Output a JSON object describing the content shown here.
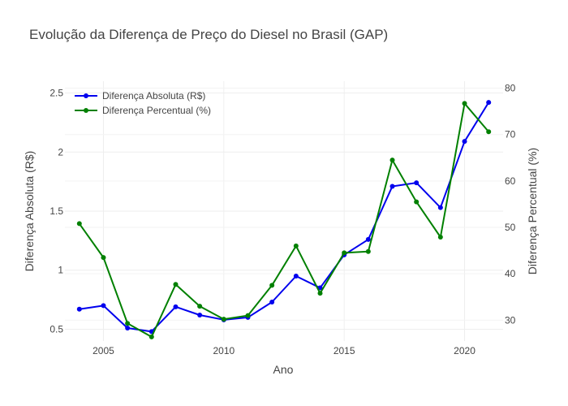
{
  "chart_data": {
    "type": "line",
    "title": "Evolução da Diferença de Preço do Diesel no Brasil (GAP)",
    "xlabel": "Ano",
    "ylabel": "Diferença Absoluta (R$)",
    "y2label": "Diferença Percentual (%)",
    "x": [
      2004,
      2005,
      2006,
      2007,
      2008,
      2009,
      2010,
      2011,
      2012,
      2013,
      2014,
      2015,
      2016,
      2017,
      2018,
      2019,
      2020,
      2021
    ],
    "xlim": [
      2003.4,
      2021.6
    ],
    "ylim": [
      0.4,
      2.6
    ],
    "y2lim": [
      25.5,
      81.5
    ],
    "x_ticks": [
      2005,
      2010,
      2015,
      2020
    ],
    "y_ticks": [
      0.5,
      1,
      1.5,
      2,
      2.5
    ],
    "y2_ticks": [
      30,
      40,
      50,
      60,
      70,
      80
    ],
    "grid": true,
    "legend_position": "top-left",
    "series": [
      {
        "name": "Diferença Absoluta (R$)",
        "axis": "y",
        "color": "#0000ee",
        "values": [
          0.67,
          0.7,
          0.51,
          0.48,
          0.69,
          0.62,
          0.58,
          0.6,
          0.73,
          0.95,
          0.85,
          1.13,
          1.26,
          1.71,
          1.74,
          1.53,
          2.09,
          2.42
        ]
      },
      {
        "name": "Diferença Percentual (%)",
        "axis": "y2",
        "color": "#008000",
        "values": [
          50.8,
          43.5,
          29.3,
          26.4,
          37.7,
          33.0,
          30.2,
          31.0,
          37.5,
          46.0,
          35.8,
          44.5,
          44.8,
          64.5,
          55.5,
          47.9,
          76.7,
          70.6
        ]
      }
    ]
  }
}
